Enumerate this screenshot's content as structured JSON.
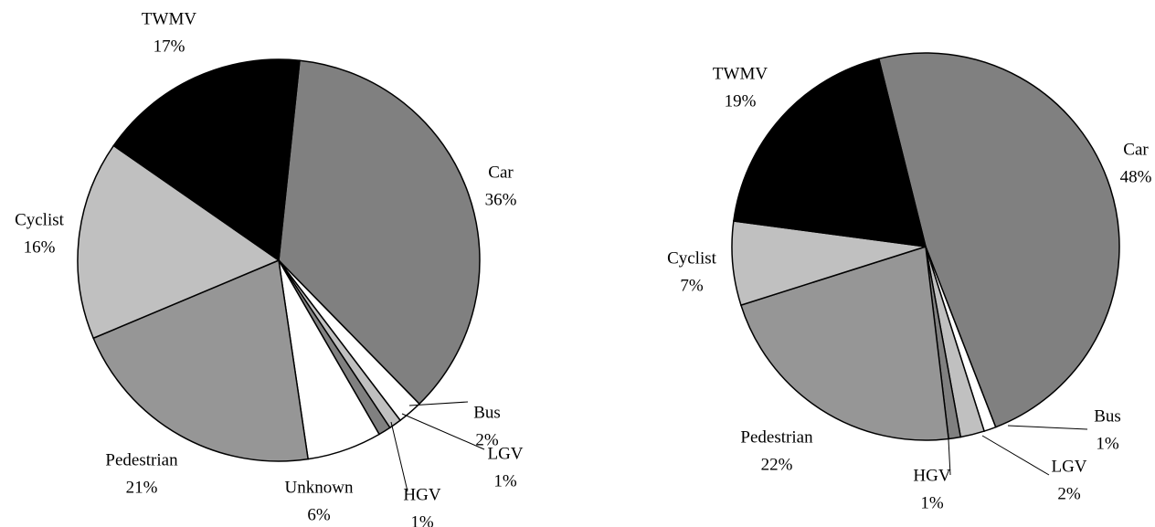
{
  "chart_data": [
    {
      "type": "pie",
      "categories": [
        "Car",
        "Bus",
        "LGV",
        "HGV",
        "Unknown",
        "Pedestrian",
        "Cyclist",
        "TWMV"
      ],
      "values": [
        36,
        2,
        1,
        1,
        6,
        21,
        16,
        17
      ],
      "value_labels": [
        "36%",
        "2%",
        "1%",
        "1%",
        "6%",
        "21%",
        "16%",
        "17%"
      ],
      "colors": [
        "#808080",
        "#ffffff",
        "#c0c0c0",
        "#808080",
        "#ffffff",
        "#969696",
        "#c0c0c0",
        "#000000"
      ]
    },
    {
      "type": "pie",
      "categories": [
        "Car",
        "Bus",
        "LGV",
        "HGV",
        "Pedestrian",
        "Cyclist",
        "TWMV"
      ],
      "values": [
        48,
        1,
        2,
        1,
        22,
        7,
        19
      ],
      "value_labels": [
        "48%",
        "1%",
        "2%",
        "1%",
        "22%",
        "7%",
        "19%"
      ],
      "colors": [
        "#808080",
        "#ffffff",
        "#c0c0c0",
        "#808080",
        "#969696",
        "#c0c0c0",
        "#000000"
      ]
    }
  ]
}
